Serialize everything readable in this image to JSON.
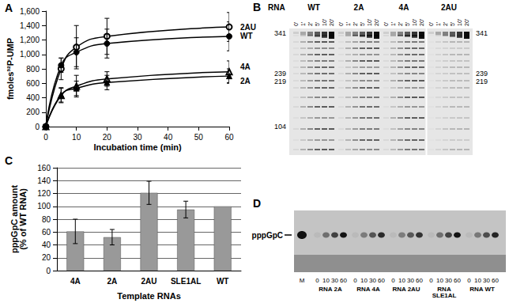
{
  "chart_data": [
    {
      "panel": "A",
      "type": "line",
      "x_label": "Incubation time (min)",
      "y_label": "fmoles³²P-UMP",
      "x": [
        0,
        5,
        10,
        20,
        60
      ],
      "series": [
        {
          "name": "2AU",
          "color": "#000000",
          "marker": "open_circle",
          "values": [
            0,
            800,
            1100,
            1250,
            1380
          ],
          "errors": [
            null,
            150,
            300,
            250,
            200
          ]
        },
        {
          "name": "WT",
          "color": "#000000",
          "marker": "circle",
          "values": [
            0,
            850,
            1030,
            1150,
            1250
          ],
          "errors": [
            null,
            100,
            200,
            200,
            200
          ]
        },
        {
          "name": "4A",
          "color": "#000000",
          "marker": "open_triangle",
          "values": [
            0,
            430,
            560,
            660,
            760
          ],
          "errors": [
            null,
            100,
            150,
            100,
            150
          ]
        },
        {
          "name": "2A",
          "color": "#000000",
          "marker": "triangle",
          "values": [
            0,
            440,
            530,
            610,
            700
          ],
          "errors": [
            null,
            100,
            100,
            100,
            100
          ]
        }
      ],
      "xlim": [
        0,
        60
      ],
      "xticks": [
        0,
        10,
        20,
        30,
        40,
        50,
        60
      ],
      "ylim": [
        0,
        1600
      ],
      "yticks": [
        0,
        200,
        400,
        600,
        800,
        1000,
        1200,
        1400,
        1600
      ],
      "grid": false
    },
    {
      "panel": "C",
      "type": "bar",
      "x_label": "Template RNAs",
      "y_label": "pppGpC amount\n(% of WT RNA)",
      "categories": [
        "4A",
        "2A",
        "2AU",
        "SLE1AL",
        "WT"
      ],
      "values": [
        61,
        52,
        121,
        95,
        100
      ],
      "errors": [
        19,
        12,
        18,
        13,
        null
      ],
      "color": "#999999",
      "ylim": [
        0,
        160
      ],
      "yticks": [
        0,
        20,
        40,
        60,
        80,
        100,
        120,
        140,
        160
      ],
      "grid": true
    }
  ],
  "gels": [
    {
      "panel": "B",
      "lane_header": "RNA",
      "groups": [
        "WT",
        "2A",
        "4A",
        "2AU"
      ],
      "times": [
        "0'",
        "1'",
        "2'",
        "5'",
        "10'",
        "20'"
      ],
      "markers_left": [
        341,
        239,
        219,
        104
      ],
      "markers_right": [
        341,
        239,
        219
      ]
    },
    {
      "panel": "D",
      "band_label": "pppGpC",
      "marker_lane": "M",
      "groups": [
        "RNA 2A",
        "RNA 4A",
        "RNA 2AU",
        "RNA SLE1AL",
        "RNA WT"
      ],
      "times": [
        0,
        10,
        30,
        60
      ]
    }
  ]
}
